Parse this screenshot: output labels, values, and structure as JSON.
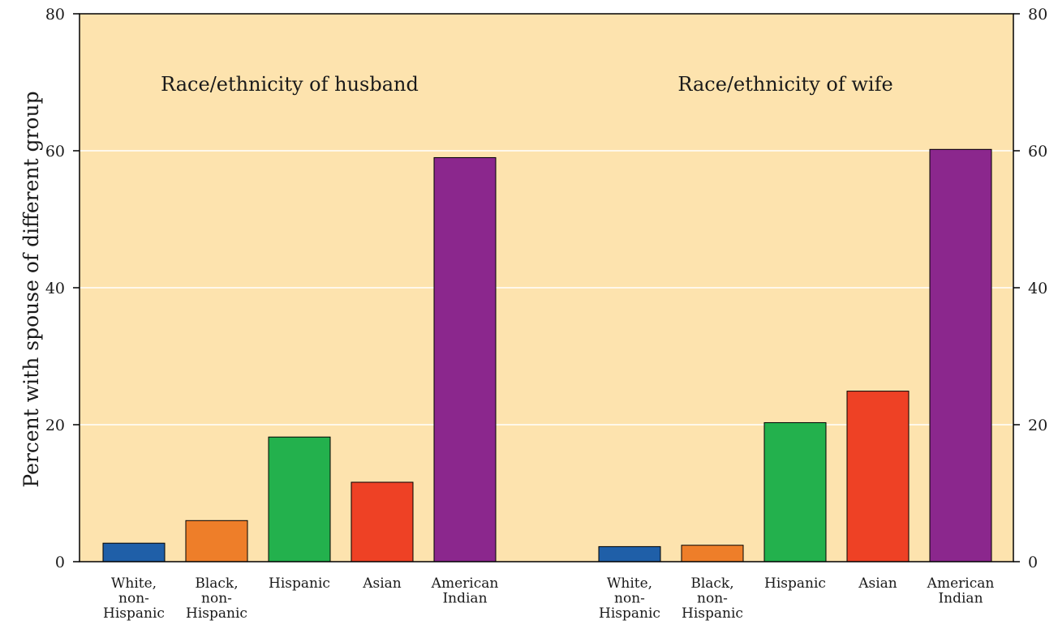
{
  "chart_data": {
    "type": "bar",
    "ylabel": "Percent with spouse of different group",
    "ylim": [
      0,
      80
    ],
    "yticks": [
      0,
      20,
      40,
      60,
      80
    ],
    "grid": true,
    "background_color": "#FDE3AE",
    "categories": [
      [
        "White,",
        "non-",
        "Hispanic"
      ],
      [
        "Black,",
        "non-",
        "Hispanic"
      ],
      [
        "Hispanic"
      ],
      [
        "Asian"
      ],
      [
        "American",
        "Indian"
      ]
    ],
    "colors": [
      "#1F5FA8",
      "#EE7E29",
      "#23B14D",
      "#EE4125",
      "#8B278D"
    ],
    "groups": [
      {
        "title": "Race/ethnicity of husband",
        "values": [
          2.7,
          6.0,
          18.2,
          11.6,
          59.0
        ]
      },
      {
        "title": "Race/ethnicity of wife",
        "values": [
          2.2,
          2.4,
          20.3,
          24.9,
          60.2
        ]
      }
    ]
  }
}
